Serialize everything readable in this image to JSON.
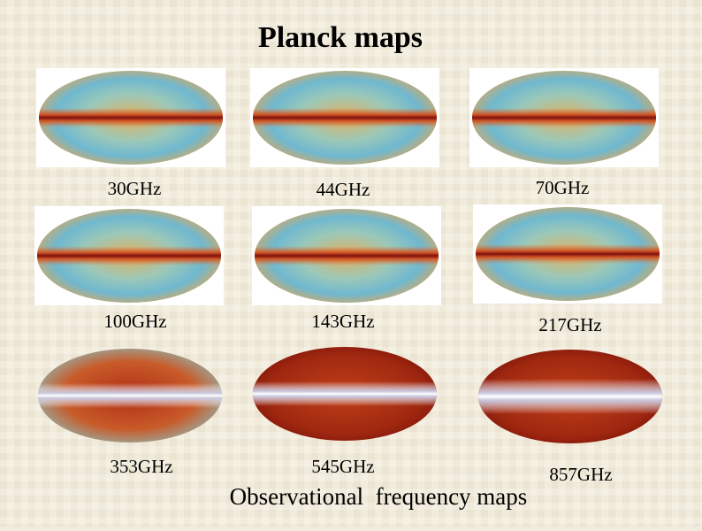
{
  "title": "Planck maps",
  "maps": [
    {
      "label": "30GHz"
    },
    {
      "label": "44GHz"
    },
    {
      "label": "70GHz"
    },
    {
      "label": "100GHz"
    },
    {
      "label": "143GHz"
    },
    {
      "label": "217GHz"
    },
    {
      "label": "353GHz"
    },
    {
      "label": "545GHz"
    },
    {
      "label": "857GHz"
    }
  ],
  "caption": "Observational  frequency maps"
}
